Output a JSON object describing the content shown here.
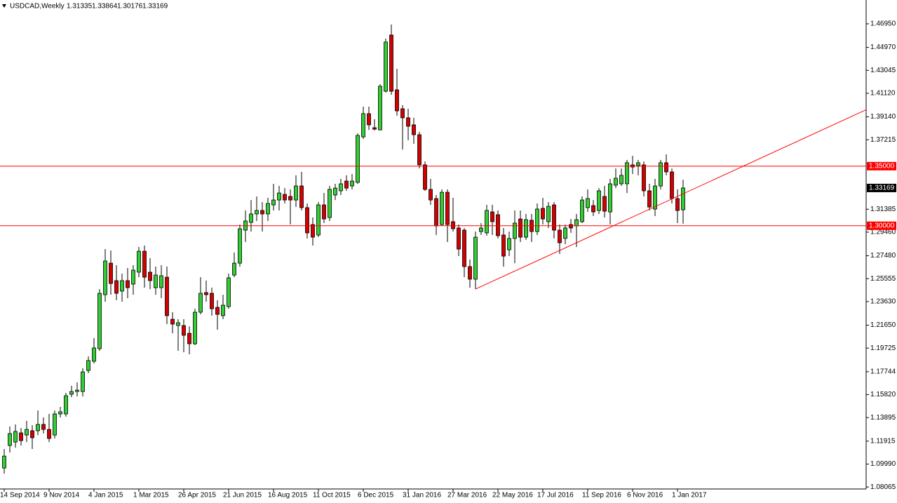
{
  "chart_data": {
    "type": "candlestick",
    "title": "USDCAD,Weekly",
    "categories": [
      "14 Sep 2014",
      null,
      null,
      null,
      null,
      null,
      null,
      null,
      "9 Nov 2014",
      null,
      null,
      null,
      null,
      null,
      null,
      null,
      "4 Jan 2015",
      null,
      null,
      null,
      null,
      null,
      null,
      null,
      "1 Mar 2015",
      null,
      null,
      null,
      null,
      null,
      null,
      null,
      "26 Apr 2015",
      null,
      null,
      null,
      null,
      null,
      null,
      null,
      "21 Jun 2015",
      null,
      null,
      null,
      null,
      null,
      null,
      null,
      "16 Aug 2015",
      null,
      null,
      null,
      null,
      null,
      null,
      null,
      "11 Oct 2015",
      null,
      null,
      null,
      null,
      null,
      null,
      null,
      "6 Dec 2015",
      null,
      null,
      null,
      null,
      null,
      null,
      null,
      "31 Jan 2016",
      null,
      null,
      null,
      null,
      null,
      null,
      null,
      "27 Mar 2016",
      null,
      null,
      null,
      null,
      null,
      null,
      null,
      "22 May 2016",
      null,
      null,
      null,
      null,
      null,
      null,
      null,
      "17 Jul 2016",
      null,
      null,
      null,
      null,
      null,
      null,
      null,
      "11 Sep 2016",
      null,
      null,
      null,
      null,
      null,
      null,
      null,
      "6 Nov 2016",
      null,
      null,
      null,
      null,
      null,
      null,
      null,
      "1 Jan 2017",
      null
    ],
    "open": [
      1.0966,
      1.1155,
      1.1184,
      1.1261,
      1.1243,
      1.1279,
      1.1279,
      1.1332,
      1.129,
      1.1243,
      1.142,
      1.142,
      1.1585,
      1.1608,
      1.1608,
      1.1785,
      1.1862,
      1.1968,
      1.2421,
      1.2686,
      1.2539,
      1.2451,
      1.2539,
      1.251,
      1.261,
      1.2786,
      1.261,
      1.248,
      1.248,
      1.2568,
      1.2215,
      1.2162,
      1.2162,
      1.2097,
      1.2009,
      1.2274,
      1.2439,
      1.2433,
      1.2315,
      1.2245,
      1.2321,
      1.2586,
      1.2686,
      1.2963,
      1.3028,
      1.3099,
      1.3128,
      1.3099,
      1.3175,
      1.3216,
      1.3263,
      1.3246,
      1.3216,
      1.3334,
      1.3152,
      1.301,
      1.2922,
      1.3175,
      1.3069,
      1.3258,
      1.3293,
      1.3375,
      1.3334,
      1.3364,
      1.3746,
      1.3941,
      1.3823,
      1.3805,
      1.4129,
      1.4601,
      1.4141,
      1.3982,
      1.3906,
      1.3847,
      1.3764,
      1.3511,
      1.3305,
      1.3228,
      1.301,
      1.3281,
      1.3034,
      1.2981,
      1.2963,
      1.2657,
      1.2551,
      1.2951,
      1.294,
      1.3116,
      1.3093,
      1.2922,
      1.2798,
      1.2893,
      1.3057,
      1.2904,
      1.3046,
      1.2951,
      1.3146,
      1.3034,
      1.3175,
      1.2963,
      1.2893,
      1.301,
      1.2999,
      1.3034,
      1.3152,
      1.3169,
      1.3128,
      1.3246,
      1.3116,
      1.334,
      1.3352,
      1.3352,
      1.3511,
      1.3505,
      1.3511,
      1.3293,
      1.314,
      1.3334,
      1.3529,
      1.3452,
      1.3228,
      1.31335
    ],
    "high": [
      1.1126,
      1.1314,
      1.1332,
      1.1302,
      1.1361,
      1.1326,
      1.1449,
      1.1391,
      1.142,
      1.1449,
      1.1479,
      1.1597,
      1.1656,
      1.1685,
      1.1803,
      1.1903,
      1.2056,
      1.2468,
      1.2804,
      1.2792,
      1.2669,
      1.2598,
      1.2645,
      1.2669,
      1.2822,
      1.2834,
      1.2728,
      1.2657,
      1.2669,
      1.2657,
      1.2274,
      1.2215,
      1.2215,
      1.2156,
      1.2303,
      1.2568,
      1.2539,
      1.248,
      1.2374,
      1.2421,
      1.2598,
      1.2775,
      1.301,
      1.3128,
      1.3216,
      1.3246,
      1.3199,
      1.3234,
      1.3352,
      1.3334,
      1.3316,
      1.3305,
      1.3423,
      1.3452,
      1.3187,
      1.3069,
      1.3199,
      1.3275,
      1.3334,
      1.3352,
      1.3393,
      1.3423,
      1.3434,
      1.3776,
      1.4,
      1.4,
      1.3894,
      1.4188,
      1.4571,
      1.4689,
      1.4318,
      1.4012,
      1.3982,
      1.3906,
      1.3788,
      1.354,
      1.3393,
      1.3258,
      1.3305,
      1.3305,
      1.3234,
      1.301,
      1.2981,
      1.2716,
      1.2951,
      1.3022,
      1.3175,
      1.3175,
      1.3128,
      1.2981,
      1.2951,
      1.3128,
      1.3128,
      1.3099,
      1.3099,
      1.3187,
      1.3234,
      1.3199,
      1.3199,
      1.301,
      1.301,
      1.3057,
      1.3099,
      1.3246,
      1.3305,
      1.3216,
      1.3316,
      1.3334,
      1.3393,
      1.3481,
      1.3481,
      1.3552,
      1.3587,
      1.3552,
      1.354,
      1.3352,
      1.3393,
      1.3552,
      1.3599,
      1.3481,
      1.3305,
      1.33864
    ],
    "low": [
      1.0919,
      1.1096,
      1.1137,
      1.1155,
      1.1184,
      1.1126,
      1.1243,
      1.1255,
      1.1184,
      1.1214,
      1.1391,
      1.1397,
      1.1561,
      1.1567,
      1.1567,
      1.1762,
      1.1844,
      1.195,
      1.2362,
      1.2421,
      1.2374,
      1.2362,
      1.2392,
      1.2421,
      1.2568,
      1.248,
      1.2468,
      1.2421,
      1.2392,
      1.2174,
      1.2097,
      1.195,
      1.1938,
      1.1921,
      1.1997,
      1.2256,
      1.2362,
      1.2245,
      1.2127,
      1.2215,
      1.2303,
      1.2568,
      1.2657,
      1.2863,
      1.2951,
      1.304,
      1.2951,
      1.304,
      1.3128,
      1.3128,
      1.3187,
      1.301,
      1.3157,
      1.3128,
      1.2893,
      1.2834,
      1.2904,
      1.3022,
      1.304,
      1.3216,
      1.3258,
      1.3293,
      1.3305,
      1.3352,
      1.3729,
      1.3805,
      1.38,
      1.38,
      1.4118,
      1.41,
      1.3923,
      1.364,
      1.3717,
      1.3688,
      1.3481,
      1.3293,
      1.3175,
      1.2922,
      1.2999,
      1.2863,
      1.2951,
      1.2745,
      1.2568,
      1.248,
      1.2468,
      1.2922,
      1.2916,
      1.2922,
      1.2893,
      1.2657,
      1.2745,
      1.2686,
      1.2863,
      1.2881,
      1.2863,
      1.2922,
      1.301,
      1.2981,
      1.2893,
      1.2763,
      1.2845,
      1.294,
      1.2822,
      1.3022,
      1.3116,
      1.3081,
      1.3099,
      1.3069,
      1.301,
      1.3316,
      1.3334,
      1.3275,
      1.3434,
      1.3423,
      1.3246,
      1.3128,
      1.3081,
      1.3305,
      1.3423,
      1.3187,
      1.3022,
      1.30176
    ],
    "close": [
      1.1066,
      1.1255,
      1.1273,
      1.1196,
      1.129,
      1.122,
      1.1332,
      1.129,
      1.1214,
      1.142,
      1.1438,
      1.1573,
      1.1608,
      1.162,
      1.1773,
      1.1868,
      1.1974,
      1.2433,
      1.2704,
      1.2515,
      1.2433,
      1.2539,
      1.248,
      1.2627,
      1.2786,
      1.2568,
      1.2539,
      1.2586,
      1.258,
      1.2245,
      1.2174,
      1.2186,
      1.208,
      1.2009,
      1.2274,
      1.2433,
      1.2421,
      1.2303,
      1.2256,
      1.2333,
      1.2563,
      1.2686,
      1.2975,
      1.304,
      1.3099,
      1.3128,
      1.3099,
      1.3187,
      1.3216,
      1.3275,
      1.3216,
      1.3216,
      1.3334,
      1.3152,
      1.294,
      1.2904,
      1.3175,
      1.3057,
      1.3305,
      1.3316,
      1.3352,
      1.3316,
      1.3375,
      1.3758,
      1.3941,
      1.3847,
      1.3811,
      1.4171,
      1.4542,
      1.4129,
      1.3964,
      1.3906,
      1.3835,
      1.3764,
      1.3511,
      1.3305,
      1.3216,
      1.2999,
      1.3281,
      1.301,
      1.2975,
      1.2804,
      1.2657,
      1.2551,
      1.2904,
      1.2981,
      1.3128,
      1.3034,
      1.2916,
      1.2745,
      1.2893,
      1.3022,
      1.2904,
      1.3051,
      1.2951,
      1.314,
      1.3057,
      1.3163,
      1.2963,
      1.2857,
      1.2981,
      1.2981,
      1.3051,
      1.3216,
      1.3228,
      1.3116,
      1.3293,
      1.3122,
      1.3352,
      1.3399,
      1.3423,
      1.3529,
      1.3493,
      1.3529,
      1.3293,
      1.3157,
      1.3334,
      1.3529,
      1.3452,
      1.3228,
      1.3128,
      1.33169
    ],
    "up_color": "#32cd32",
    "down_color": "#d40000",
    "wick_color": "#000000",
    "ylim": [
      1.079,
      1.4895
    ],
    "yticks": [
      {
        "value": 1.4695,
        "label": "1.46950"
      },
      {
        "value": 1.4497,
        "label": "1.44970"
      },
      1.43045,
      {
        "value": 1.4112,
        "label": "1.41120"
      },
      {
        "value": 1.3914,
        "label": "1.39140"
      },
      1.37215,
      1.31385,
      {
        "value": 1.2946,
        "label": "1.29460"
      },
      {
        "value": 1.2748,
        "label": "1.27480"
      },
      1.25555,
      {
        "value": 1.2363,
        "label": "1.23630"
      },
      {
        "value": 1.2165,
        "label": "1.21650"
      },
      1.19725,
      1.17744,
      {
        "value": 1.1582,
        "label": "1.15820"
      },
      1.13895,
      1.11915,
      {
        "value": 1.0999,
        "label": "1.09990"
      },
      1.08065
    ],
    "hlines": [
      {
        "value": 1.35,
        "label": "1.35000",
        "color": "#ff0000"
      },
      {
        "value": 1.3,
        "label": "1.30000",
        "color": "#ff0000"
      }
    ],
    "trendline": {
      "points": [
        {
          "index": 84,
          "value": 1.2468
        },
        {
          "index": 108,
          "value": 1.2987
        }
      ],
      "color": "#ff0000"
    }
  }
}
